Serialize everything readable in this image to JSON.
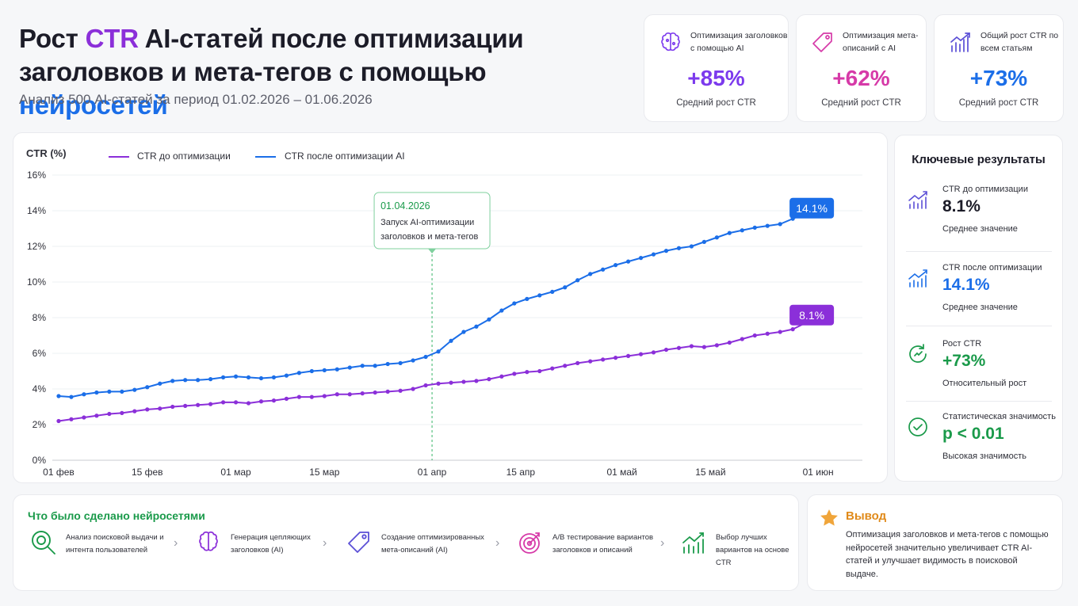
{
  "header": {
    "title_part1": "Рост ",
    "title_accent": "CTR",
    "title_part2": " AI-статей после оптимизации заголовков и мета-тегов с помощью ",
    "title_accent2": "нейросетей",
    "subtitle": "Анализ 500 AI-статей за период 01.02.2026 – 01.06.2026"
  },
  "stat_cards": [
    {
      "label": "Оптимизация заголовков с помощью AI",
      "value": "+85%",
      "caption": "Средний рост CTR",
      "color": "#7c3aed",
      "icon": "brain-icon"
    },
    {
      "label": "Оптимизация мета-описаний с AI",
      "value": "+62%",
      "caption": "Средний рост CTR",
      "color": "#d63aa8",
      "icon": "tag-icon"
    },
    {
      "label": "Общий рост CTR по всем статьям",
      "value": "+73%",
      "caption": "Средний рост CTR",
      "color": "#1b6ee8",
      "icon": "growth-chart-icon"
    }
  ],
  "key_results": {
    "title": "Ключевые результаты",
    "items": [
      {
        "label": "CTR до оптимизации",
        "value": "8.1%",
        "sub": "Среднее значение",
        "color": "#1c1c28",
        "icon": "bar-growth-icon"
      },
      {
        "label": "CTR после оптимизации",
        "value": "14.1%",
        "sub": "Среднее значение",
        "color": "#1b6ee8",
        "icon": "bar-growth-icon"
      },
      {
        "label": "Рост CTR",
        "value": "+73%",
        "sub": "Относительный рост",
        "color": "#1a9a4a",
        "icon": "refresh-growth-icon"
      },
      {
        "label": "Статистическая значимость",
        "value": "p < 0.01",
        "sub": "Высокая значимость",
        "color": "#1a9a4a",
        "icon": "check-circle-icon"
      }
    ]
  },
  "done": {
    "title": "Что было сделано нейросетями",
    "steps": [
      {
        "text": "Анализ поисковой выдачи и интента пользователей",
        "icon": "magnifier-icon",
        "color": "#1a9a4a"
      },
      {
        "text": "Генерация цепляющих заголовков (AI)",
        "icon": "brain-icon",
        "color": "#8b2fd9"
      },
      {
        "text": "Создание оптимизированных мета-описаний (AI)",
        "icon": "tag-icon",
        "color": "#5b4fd6"
      },
      {
        "text": "A/B тестирование вариантов заголовков и описаний",
        "icon": "target-icon",
        "color": "#d63aa8"
      },
      {
        "text": "Выбор лучших вариантов на основе CTR",
        "icon": "bar-growth-icon",
        "color": "#1a9a4a"
      }
    ]
  },
  "conclusion": {
    "title": "Вывод",
    "text": "Оптимизация заголовков и мета-тегов с помощью нейросетей значительно увеличивает CTR AI-статей и улучшает видимость в поисковой выдаче.",
    "icon": "star-icon"
  },
  "chart_data": {
    "type": "line",
    "ylabel": "CTR (%)",
    "ylim": [
      0,
      16
    ],
    "yticks": [
      0,
      2,
      4,
      6,
      8,
      10,
      12,
      14,
      16
    ],
    "ytick_labels": [
      "0%",
      "2%",
      "4%",
      "6%",
      "8%",
      "10%",
      "12%",
      "14%",
      "16%"
    ],
    "xlim": [
      "2026-01-31",
      "2026-06-08"
    ],
    "xticks": [
      {
        "date": "2026-02-01",
        "label": "01 фев"
      },
      {
        "date": "2026-02-15",
        "label": "15 фев"
      },
      {
        "date": "2026-03-01",
        "label": "01 мар"
      },
      {
        "date": "2026-03-15",
        "label": "15 мар"
      },
      {
        "date": "2026-04-01",
        "label": "01 апр"
      },
      {
        "date": "2026-04-15",
        "label": "15 апр"
      },
      {
        "date": "2026-05-01",
        "label": "01 май"
      },
      {
        "date": "2026-05-15",
        "label": "15 май"
      },
      {
        "date": "2026-06-01",
        "label": "01 июн"
      }
    ],
    "grid": true,
    "legend": "top-left",
    "x": [
      "2026-02-01",
      "2026-02-03",
      "2026-02-05",
      "2026-02-07",
      "2026-02-09",
      "2026-02-11",
      "2026-02-13",
      "2026-02-15",
      "2026-02-17",
      "2026-02-19",
      "2026-02-21",
      "2026-02-23",
      "2026-02-25",
      "2026-02-27",
      "2026-03-01",
      "2026-03-03",
      "2026-03-05",
      "2026-03-07",
      "2026-03-09",
      "2026-03-11",
      "2026-03-13",
      "2026-03-15",
      "2026-03-17",
      "2026-03-19",
      "2026-03-21",
      "2026-03-23",
      "2026-03-25",
      "2026-03-27",
      "2026-03-29",
      "2026-03-31",
      "2026-04-02",
      "2026-04-04",
      "2026-04-06",
      "2026-04-08",
      "2026-04-10",
      "2026-04-12",
      "2026-04-14",
      "2026-04-16",
      "2026-04-18",
      "2026-04-20",
      "2026-04-22",
      "2026-04-24",
      "2026-04-26",
      "2026-04-28",
      "2026-04-30",
      "2026-05-02",
      "2026-05-04",
      "2026-05-06",
      "2026-05-08",
      "2026-05-10",
      "2026-05-12",
      "2026-05-14",
      "2026-05-16",
      "2026-05-18",
      "2026-05-20",
      "2026-05-22",
      "2026-05-24",
      "2026-05-26",
      "2026-05-28",
      "2026-05-30",
      "2026-06-01"
    ],
    "series": [
      {
        "name": "CTR до оптимизации",
        "color": "#8b2fd9",
        "end_label": "8.1%",
        "values": [
          2.2,
          2.3,
          2.4,
          2.5,
          2.6,
          2.65,
          2.75,
          2.85,
          2.9,
          3.0,
          3.05,
          3.1,
          3.15,
          3.25,
          3.25,
          3.2,
          3.3,
          3.35,
          3.45,
          3.55,
          3.55,
          3.6,
          3.7,
          3.7,
          3.75,
          3.8,
          3.85,
          3.9,
          4.0,
          4.2,
          4.3,
          4.35,
          4.4,
          4.45,
          4.55,
          4.7,
          4.85,
          4.95,
          5.0,
          5.15,
          5.3,
          5.45,
          5.55,
          5.65,
          5.75,
          5.85,
          5.95,
          6.05,
          6.2,
          6.3,
          6.4,
          6.35,
          6.45,
          6.6,
          6.8,
          7.0,
          7.1,
          7.2,
          7.35,
          7.7,
          8.1
        ]
      },
      {
        "name": "CTR после оптимизации AI",
        "color": "#1b6ee8",
        "end_label": "14.1%",
        "values": [
          3.6,
          3.55,
          3.7,
          3.8,
          3.85,
          3.85,
          3.95,
          4.1,
          4.3,
          4.45,
          4.5,
          4.5,
          4.55,
          4.65,
          4.7,
          4.65,
          4.6,
          4.65,
          4.75,
          4.9,
          5.0,
          5.05,
          5.1,
          5.2,
          5.3,
          5.3,
          5.4,
          5.45,
          5.6,
          5.8,
          6.1,
          6.7,
          7.2,
          7.5,
          7.9,
          8.4,
          8.8,
          9.05,
          9.25,
          9.45,
          9.7,
          10.1,
          10.45,
          10.7,
          10.95,
          11.15,
          11.35,
          11.55,
          11.75,
          11.9,
          12.0,
          12.25,
          12.5,
          12.75,
          12.9,
          13.05,
          13.15,
          13.25,
          13.55,
          13.85,
          14.1
        ]
      }
    ],
    "annotation": {
      "date": "2026-04-01",
      "title": "01.04.2026",
      "text": "Запуск AI-оптимизации заголовков и мета-тегов"
    }
  }
}
